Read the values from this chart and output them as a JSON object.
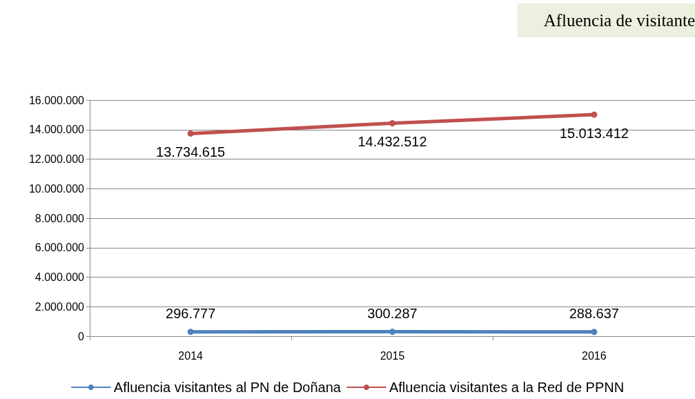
{
  "chart_data": {
    "type": "line",
    "title": "Afluencia de visitante",
    "categories": [
      "2014",
      "2015",
      "2016"
    ],
    "series": [
      {
        "name": "Afluencia visitantes al PN de Doñana",
        "color": "#4f81bd",
        "values": [
          296777,
          300287,
          288637
        ],
        "value_labels": [
          "296.777",
          "300.287",
          "288.637"
        ]
      },
      {
        "name": "Afluencia visitantes a la Red de PPNN",
        "color": "#c0504d",
        "values": [
          13734615,
          14432512,
          15013412
        ],
        "value_labels": [
          "13.734.615",
          "14.432.512",
          "15.013.412"
        ]
      }
    ],
    "ylim": [
      0,
      16000000
    ],
    "yticks": [
      0,
      {
        "value": 2000000,
        "label": "2.000.000"
      },
      {
        "value": 4000000,
        "label": "4.000.000"
      },
      {
        "value": 6000000,
        "label": "6.000.000"
      },
      {
        "value": 8000000,
        "label": "8.000.000"
      },
      {
        "value": 10000000,
        "label": "10.000.000"
      },
      {
        "value": 12000000,
        "label": "12.000.000"
      },
      {
        "value": 14000000,
        "label": "14.000.000"
      },
      {
        "value": 16000000,
        "label": "16.000.000"
      }
    ],
    "grid": "y",
    "legend": "bottom",
    "marker": "circle",
    "line_style": "solid"
  }
}
